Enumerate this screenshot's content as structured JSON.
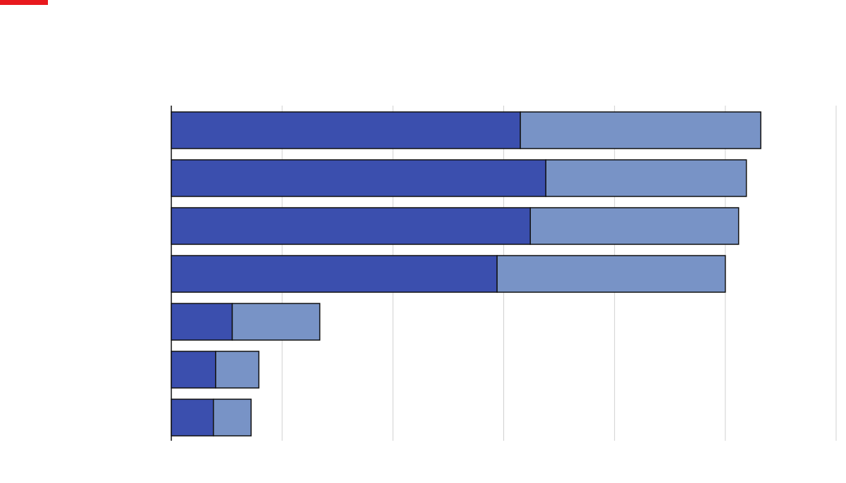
{
  "chart_data": {
    "type": "stacked-bar-horizontal",
    "categories": [
      null,
      null,
      null,
      null,
      null,
      null,
      null
    ],
    "series": [
      {
        "color": "#3b4fae",
        "values": [
          3.15,
          3.38,
          3.24,
          2.94,
          0.55,
          0.4,
          0.38
        ]
      },
      {
        "color": "#7893c6",
        "values": [
          2.17,
          1.81,
          1.88,
          2.06,
          0.79,
          0.39,
          0.34
        ]
      }
    ],
    "xlim": [
      0,
      6
    ],
    "xticks": [
      0,
      1,
      2,
      3,
      4,
      5,
      6
    ],
    "grid": true
  }
}
